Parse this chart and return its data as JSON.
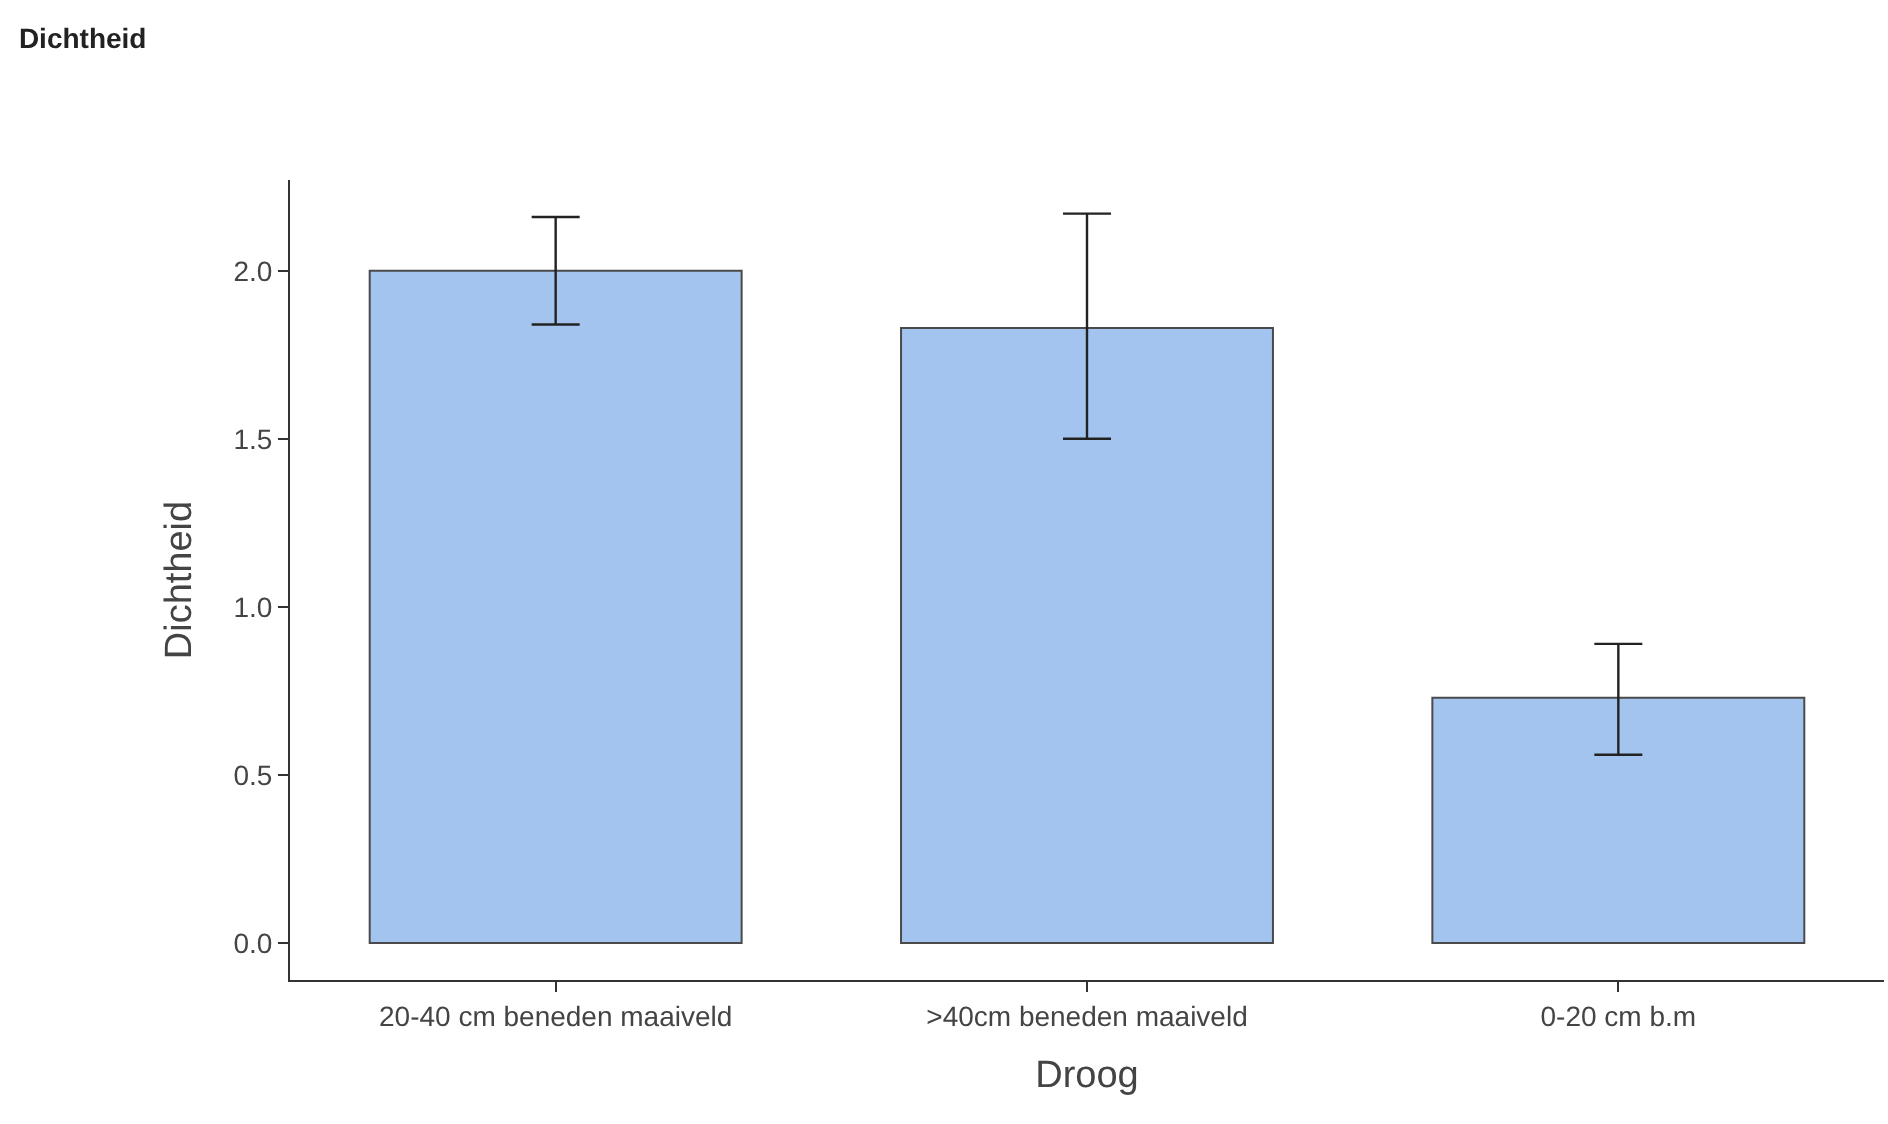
{
  "chart_data": {
    "type": "bar",
    "title": "Dichtheid",
    "xlabel": "Droog",
    "ylabel": "Dichtheid",
    "categories": [
      "20-40 cm beneden maaiveld",
      ">40cm beneden maaiveld",
      "0-20 cm b.m"
    ],
    "series": [
      {
        "color": "#a4c4f0",
        "values": [
          2.0,
          1.83,
          0.73
        ],
        "errors": [
          [
            1.84,
            2.16
          ],
          [
            1.5,
            2.17
          ],
          [
            0.56,
            0.89
          ]
        ]
      }
    ],
    "ylim": [
      -0.11,
      2.27
    ],
    "yticks": [
      {
        "value": 0,
        "label": "0.0"
      },
      0.5,
      {
        "value": 1,
        "label": "1.0"
      },
      1.5,
      {
        "value": 2,
        "label": "2.0"
      }
    ],
    "legend": false
  }
}
